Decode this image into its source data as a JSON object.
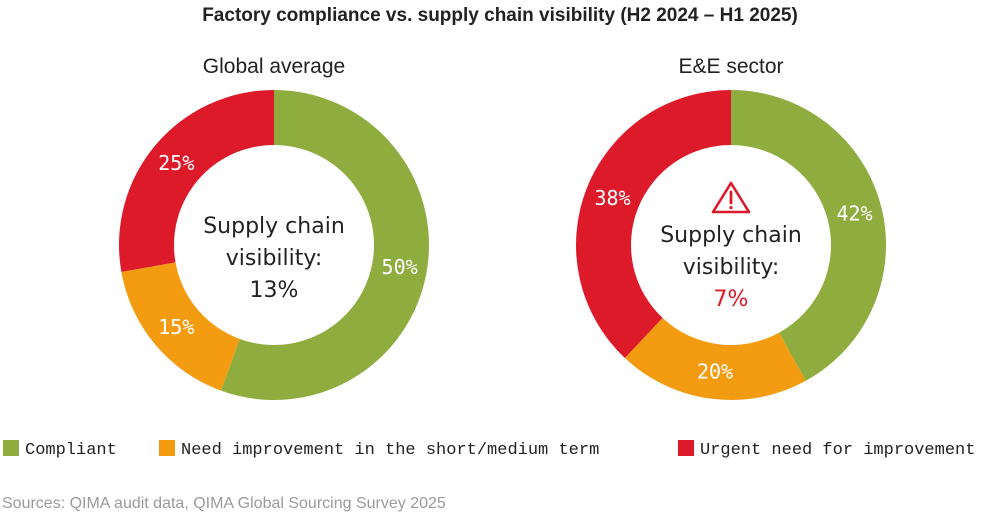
{
  "chart_data": {
    "type": "pie",
    "title": "Factory compliance vs. supply chain visibility (H2 2024 – H1 2025)",
    "series_names": [
      "Compliant",
      "Need improvement in the short/medium term",
      "Urgent need for improvement"
    ],
    "colors": {
      "compliant": "#8fac3e",
      "need_improvement": "#f39c12",
      "urgent": "#dc1a2a",
      "highlight_text": "#dc1a2a"
    },
    "charts": [
      {
        "subtitle": "Global average",
        "center_lines": [
          "Supply chain",
          "visibility:",
          "13%"
        ],
        "warning_icon": false,
        "slices": [
          {
            "category": "Compliant",
            "value": 50,
            "label": "50%"
          },
          {
            "category": "Need improvement in the short/medium term",
            "value": 15,
            "label": "15%"
          },
          {
            "category": "Urgent need for improvement",
            "value": 25,
            "label": "25%"
          }
        ]
      },
      {
        "subtitle": "E&E sector",
        "center_lines": [
          "Supply chain",
          "visibility:",
          "7%"
        ],
        "warning_icon": true,
        "slices": [
          {
            "category": "Compliant",
            "value": 42,
            "label": "42%"
          },
          {
            "category": "Need improvement in the short/medium term",
            "value": 20,
            "label": "20%"
          },
          {
            "category": "Urgent need for improvement",
            "value": 38,
            "label": "38%"
          }
        ]
      }
    ],
    "legend": [
      {
        "label": "Compliant"
      },
      {
        "label": "Need improvement in the short/medium term"
      },
      {
        "label": "Urgent need for improvement"
      }
    ],
    "source": "Sources: QIMA audit data, QIMA Global Sourcing Survey 2025"
  }
}
